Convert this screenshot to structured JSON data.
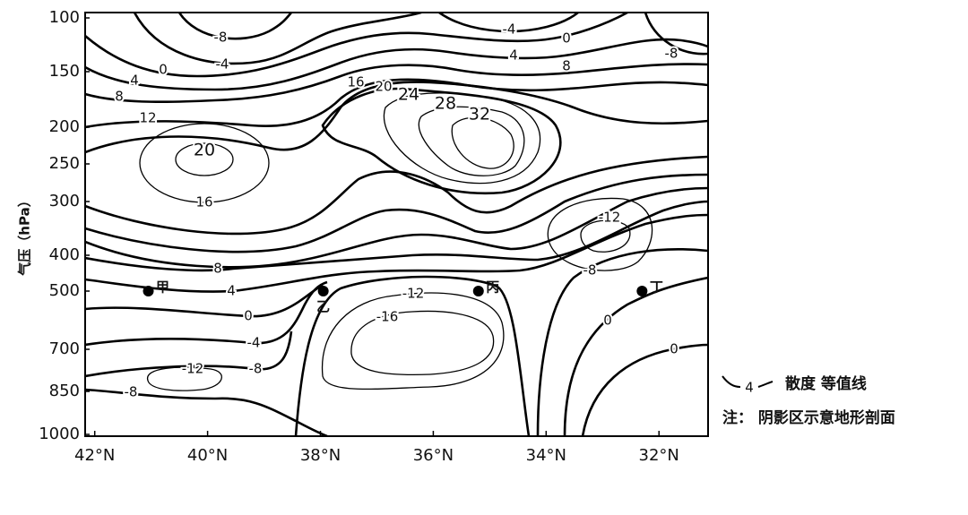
{
  "chart_data": {
    "type": "contour",
    "y_label": "气压（hPa）",
    "ylim": [
      100,
      1000
    ],
    "yticks": [
      100,
      150,
      200,
      250,
      300,
      400,
      500,
      700,
      850,
      1000
    ],
    "xlim": [
      42.17,
      31.13
    ],
    "xticks": [
      {
        "value": 42,
        "label": "42°N"
      },
      {
        "value": 40,
        "label": "40°N"
      },
      {
        "value": 38,
        "label": "38°N"
      },
      {
        "value": 36,
        "label": "36°N"
      },
      {
        "value": 34,
        "label": "34°N"
      },
      {
        "value": 32,
        "label": "32°N"
      }
    ],
    "contour_labels": [
      -8,
      -4,
      0,
      4,
      8,
      12,
      20,
      16,
      -4,
      0,
      4,
      8,
      -8,
      16,
      20,
      24,
      28,
      32,
      -12,
      -8,
      8,
      4,
      0,
      -4,
      -8,
      -12,
      -8,
      -12,
      -16,
      0,
      0
    ],
    "points": [
      {
        "label": "甲",
        "x": 41.05,
        "p": 500
      },
      {
        "label": "乙",
        "x": 37.95,
        "p": 500
      },
      {
        "label": "丙",
        "x": 35.2,
        "p": 500
      },
      {
        "label": "丁",
        "x": 32.3,
        "p": 500
      }
    ],
    "legend": {
      "level": 4,
      "text": "散度 等值线"
    },
    "note": "注： 阴影区示意地形剖面"
  }
}
